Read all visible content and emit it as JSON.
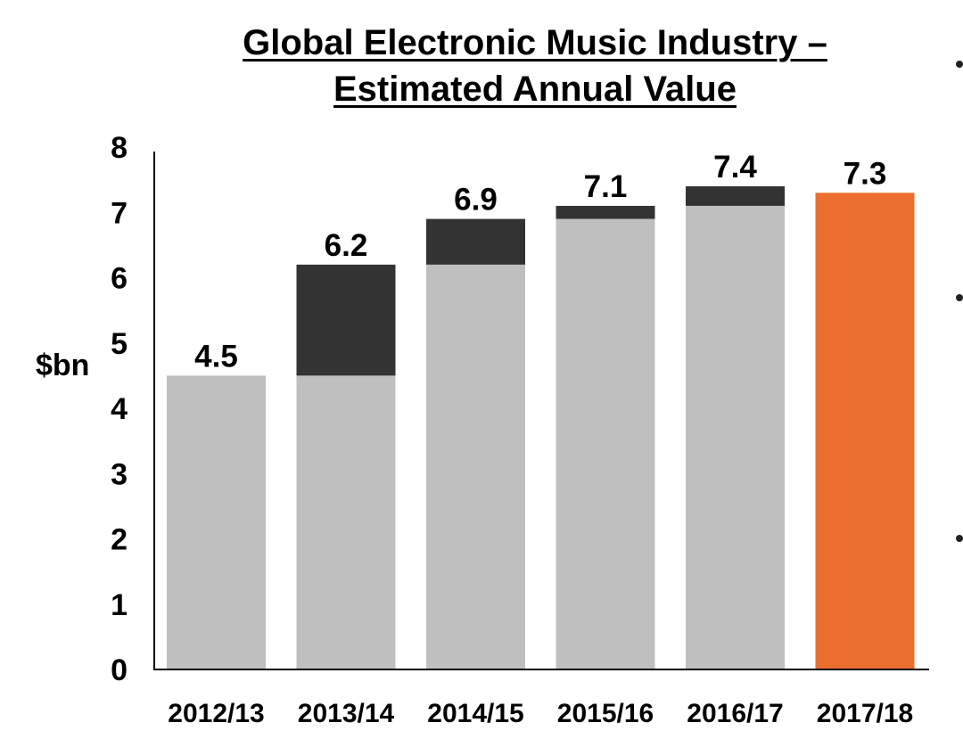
{
  "chart_data": {
    "type": "bar",
    "title": "Global Electronic Music Industry – Estimated Annual Value",
    "title_lines": [
      "Global Electronic Music Industry –",
      "Estimated Annual Value"
    ],
    "xlabel": "",
    "ylabel": "$bn",
    "ylim": [
      0,
      8
    ],
    "yticks": [
      0,
      1,
      2,
      3,
      4,
      5,
      6,
      7,
      8
    ],
    "grid": false,
    "categories": [
      "2012/13",
      "2013/14",
      "2014/15",
      "2015/16",
      "2016/17",
      "2017/18"
    ],
    "values": [
      4.5,
      6.2,
      6.9,
      7.1,
      7.4,
      7.3
    ],
    "previous_year_values": [
      null,
      4.5,
      6.2,
      6.9,
      7.1,
      null
    ],
    "data_labels": [
      "4.5",
      "6.2",
      "6.9",
      "7.1",
      "7.4",
      "7.3"
    ],
    "colors": {
      "base": "#bfbfbf",
      "growth": "#333333",
      "highlight": "#eb6e2e",
      "axis": "#000000"
    }
  }
}
